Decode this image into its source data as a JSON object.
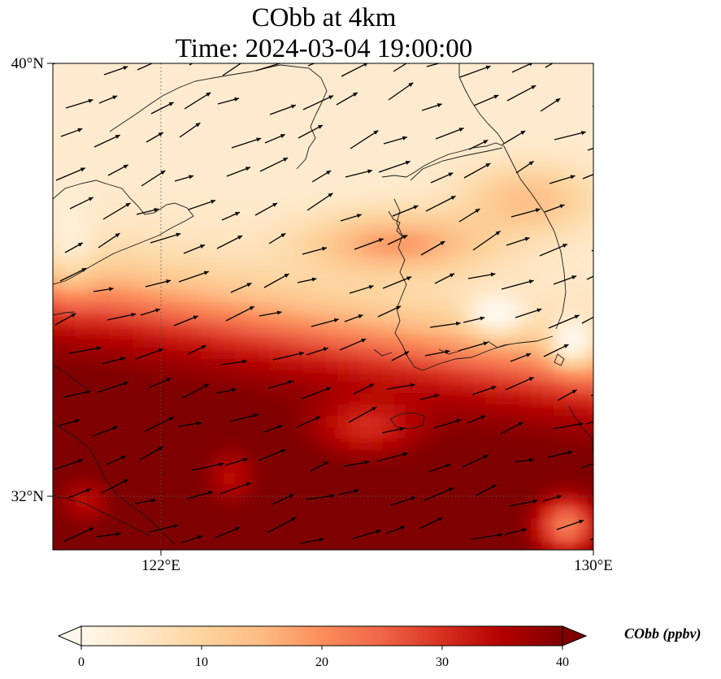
{
  "figure": {
    "title_line1": "CObb at 4km",
    "title_line2": "Time: 2024-03-04 19:00:00"
  },
  "axes": {
    "lon_ticks": [
      "122°E",
      "130°E"
    ],
    "lat_ticks": [
      "40°N",
      "32°N"
    ],
    "lon_range": [
      120,
      130
    ],
    "lat_range": [
      31,
      40
    ]
  },
  "colorbar": {
    "label": "CObb (ppbv)",
    "ticks": [
      "0",
      "10",
      "20",
      "30",
      "40"
    ],
    "range": [
      0,
      40
    ],
    "extend": "both",
    "colormap": "OrRd",
    "colors": [
      "#fff7ec",
      "#fee8c8",
      "#fdd49e",
      "#fdbb84",
      "#fc8d59",
      "#ef6548",
      "#d7301f",
      "#b30000",
      "#7f0000"
    ]
  },
  "chart_data": {
    "type": "heatmap",
    "title": "CObb at 4km\nTime: 2024-03-04 19:00:00",
    "variable": "CObb",
    "units": "ppbv",
    "level": "4km",
    "time": "2024-03-04 19:00:00",
    "xlim": [
      120,
      130
    ],
    "ylim": [
      31,
      40
    ],
    "vmin": 0,
    "vmax": 40,
    "xticks": [
      122,
      130
    ],
    "yticks": [
      40,
      32
    ],
    "gridlines": "dotted at 122°E and 32°N",
    "overlay": "wind vectors (arrows) pointing east-northeast",
    "field_summary": [
      {
        "region": "northern band (north of ~37°N)",
        "cobb_ppbv": [
          0,
          10
        ]
      },
      {
        "region": "central band (~35–37°N)",
        "cobb_ppbv": [
          15,
          32
        ]
      },
      {
        "region": "southern half (south of ~34.5°N)",
        "cobb_ppbv": [
          30,
          40
        ]
      }
    ]
  }
}
